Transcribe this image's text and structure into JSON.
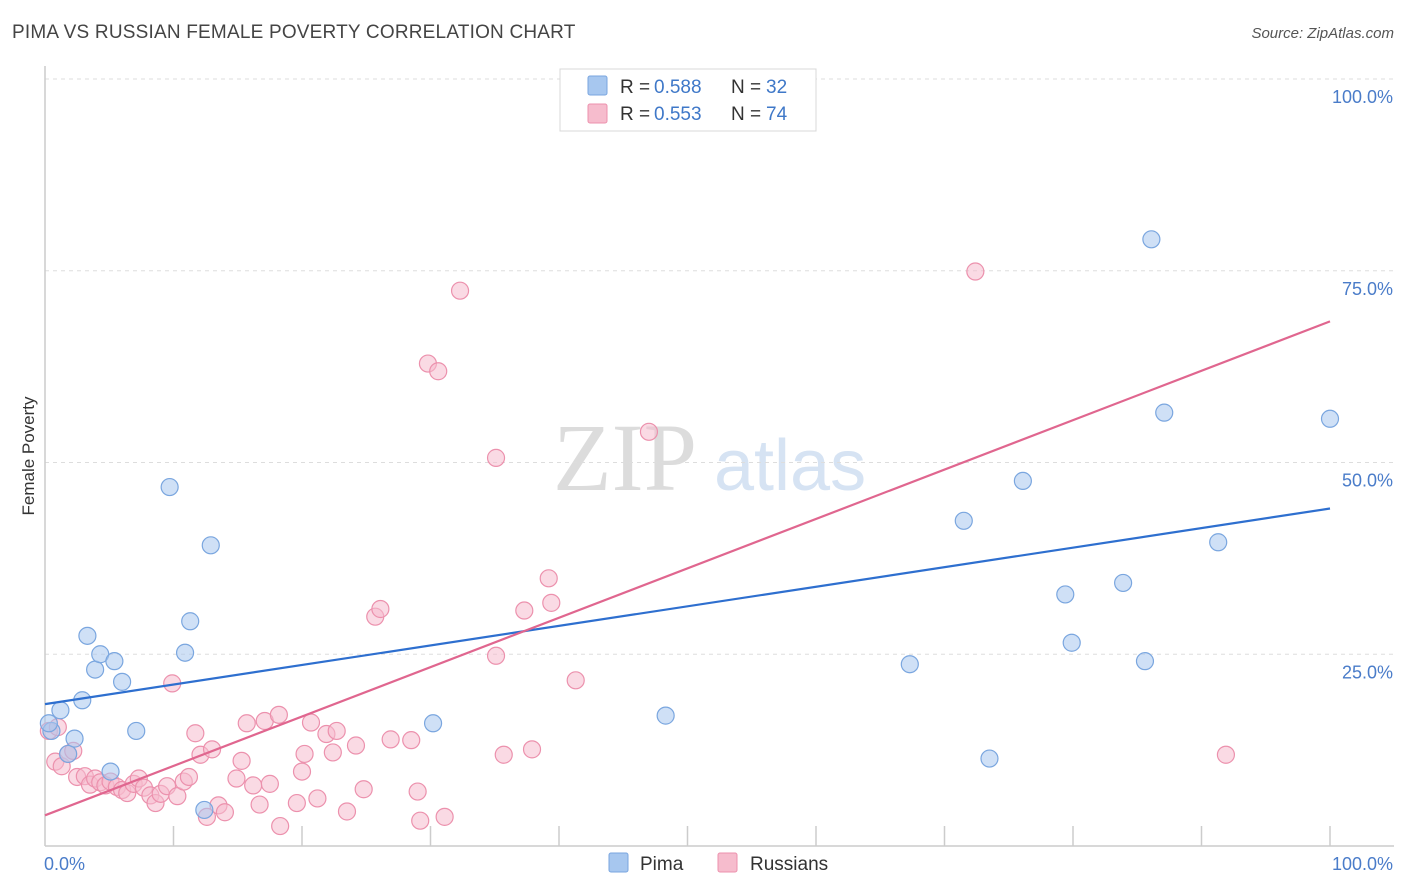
{
  "title": "PIMA VS RUSSIAN FEMALE POVERTY CORRELATION CHART",
  "source": "Source: ZipAtlas.com",
  "watermark": {
    "zip": "ZIP",
    "atlas": "atlas"
  },
  "legend": {
    "pima": {
      "r_label": "R = ",
      "r_value": "0.588",
      "n_label": "N = ",
      "n_value": "32"
    },
    "russians": {
      "r_label": "R = ",
      "r_value": "0.553",
      "n_label": "N = ",
      "n_value": "74"
    }
  },
  "bottom_legend": {
    "pima": "Pima",
    "russians": "Russians"
  },
  "chart_data": {
    "type": "scatter",
    "title": "PIMA VS RUSSIAN FEMALE POVERTY CORRELATION CHART",
    "xlabel": "",
    "ylabel": "Female Poverty",
    "xlim": [
      0,
      100
    ],
    "ylim": [
      0,
      100
    ],
    "x_tick_labels": [
      "0.0%",
      "100.0%"
    ],
    "y_tick_labels": [
      "25.0%",
      "50.0%",
      "75.0%",
      "100.0%"
    ],
    "y_ticks": [
      25,
      50,
      75,
      100
    ],
    "grid": true,
    "legend_position": "top-center",
    "colors": {
      "pima": "#a7c7ef",
      "pima_edge": "#7aa6df",
      "pima_line": "#2e6fcf",
      "russians": "#f6bccd",
      "russians_edge": "#ec91ad",
      "russians_line": "#e0668f"
    },
    "series": [
      {
        "name": "Pima",
        "r": 0.588,
        "n": 32,
        "trend": {
          "x": [
            0,
            100
          ],
          "y": [
            18.5,
            44.0
          ]
        },
        "points": [
          [
            0.5,
            15.0
          ],
          [
            1.2,
            17.7
          ],
          [
            1.8,
            12.0
          ],
          [
            2.3,
            14.0
          ],
          [
            2.9,
            19.0
          ],
          [
            3.3,
            27.4
          ],
          [
            3.9,
            23.0
          ],
          [
            4.3,
            25.0
          ],
          [
            5.4,
            24.1
          ],
          [
            6.0,
            21.4
          ],
          [
            5.1,
            9.7
          ],
          [
            7.1,
            15.0
          ],
          [
            9.7,
            46.8
          ],
          [
            10.9,
            25.2
          ],
          [
            11.3,
            29.3
          ],
          [
            12.9,
            39.2
          ],
          [
            12.4,
            4.7
          ],
          [
            30.2,
            16.0
          ],
          [
            48.3,
            17.0
          ],
          [
            67.3,
            23.7
          ],
          [
            71.5,
            42.4
          ],
          [
            73.5,
            11.4
          ],
          [
            76.1,
            47.6
          ],
          [
            79.4,
            32.8
          ],
          [
            79.9,
            26.5
          ],
          [
            83.9,
            34.3
          ],
          [
            85.6,
            24.1
          ],
          [
            86.1,
            79.1
          ],
          [
            87.1,
            56.5
          ],
          [
            91.3,
            39.6
          ],
          [
            100.0,
            55.7
          ],
          [
            0.3,
            16.0
          ]
        ]
      },
      {
        "name": "Russians",
        "r": 0.553,
        "n": 74,
        "trend": {
          "x": [
            0,
            100
          ],
          "y": [
            4.0,
            68.4
          ]
        },
        "points": [
          [
            0.3,
            15.0
          ],
          [
            0.8,
            11.0
          ],
          [
            1.3,
            10.4
          ],
          [
            1.8,
            12.0
          ],
          [
            2.2,
            12.4
          ],
          [
            2.5,
            9.0
          ],
          [
            3.1,
            9.1
          ],
          [
            3.5,
            8.0
          ],
          [
            3.9,
            8.8
          ],
          [
            4.3,
            8.3
          ],
          [
            4.7,
            7.9
          ],
          [
            5.1,
            8.4
          ],
          [
            5.6,
            7.7
          ],
          [
            6.0,
            7.3
          ],
          [
            6.4,
            6.9
          ],
          [
            6.9,
            8.1
          ],
          [
            7.3,
            8.8
          ],
          [
            7.7,
            7.6
          ],
          [
            8.2,
            6.6
          ],
          [
            8.6,
            5.6
          ],
          [
            9.0,
            6.8
          ],
          [
            9.5,
            7.8
          ],
          [
            9.9,
            21.2
          ],
          [
            10.3,
            6.5
          ],
          [
            10.8,
            8.4
          ],
          [
            11.2,
            9.0
          ],
          [
            11.7,
            14.7
          ],
          [
            12.1,
            11.9
          ],
          [
            12.6,
            3.8
          ],
          [
            13.0,
            12.6
          ],
          [
            13.5,
            5.3
          ],
          [
            14.0,
            4.4
          ],
          [
            14.9,
            8.8
          ],
          [
            15.3,
            11.1
          ],
          [
            15.7,
            16.0
          ],
          [
            16.2,
            7.9
          ],
          [
            16.7,
            5.4
          ],
          [
            17.1,
            16.3
          ],
          [
            17.5,
            8.1
          ],
          [
            18.2,
            17.1
          ],
          [
            18.3,
            2.6
          ],
          [
            19.6,
            5.6
          ],
          [
            20.0,
            9.7
          ],
          [
            20.2,
            12.0
          ],
          [
            20.7,
            16.1
          ],
          [
            21.2,
            6.2
          ],
          [
            21.9,
            14.6
          ],
          [
            22.7,
            15.0
          ],
          [
            22.4,
            12.2
          ],
          [
            23.5,
            4.5
          ],
          [
            24.2,
            13.1
          ],
          [
            24.8,
            7.4
          ],
          [
            25.7,
            29.9
          ],
          [
            26.1,
            30.9
          ],
          [
            26.9,
            13.9
          ],
          [
            28.5,
            13.8
          ],
          [
            29.0,
            7.1
          ],
          [
            29.2,
            3.3
          ],
          [
            31.1,
            3.8
          ],
          [
            29.8,
            62.9
          ],
          [
            30.6,
            61.9
          ],
          [
            32.3,
            72.4
          ],
          [
            35.1,
            50.6
          ],
          [
            35.1,
            24.8
          ],
          [
            35.7,
            11.9
          ],
          [
            37.3,
            30.7
          ],
          [
            37.9,
            12.6
          ],
          [
            39.2,
            34.9
          ],
          [
            39.4,
            31.7
          ],
          [
            41.3,
            21.6
          ],
          [
            47.0,
            54.0
          ],
          [
            72.4,
            74.9
          ],
          [
            91.9,
            11.9
          ],
          [
            1.0,
            15.5
          ]
        ]
      }
    ]
  }
}
